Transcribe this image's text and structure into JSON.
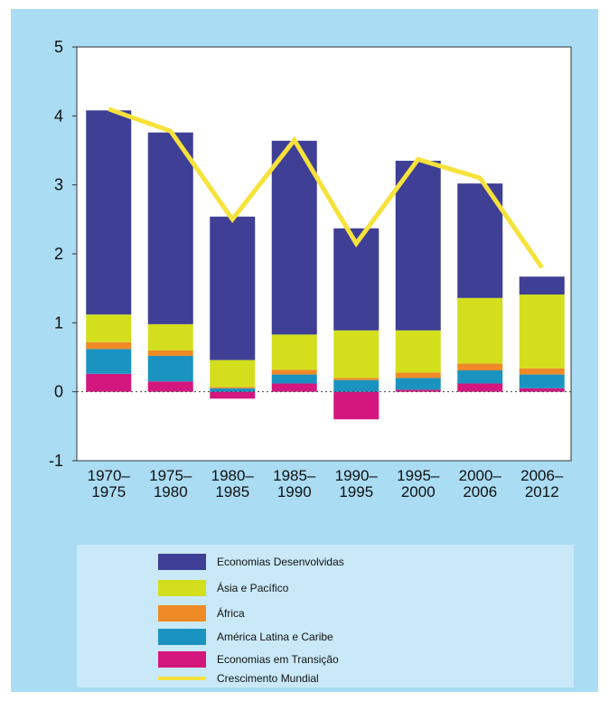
{
  "chart_data": {
    "type": "bar",
    "stacked": true,
    "categories": [
      "1970–1975",
      "1975–1980",
      "1980–1985",
      "1985–1990",
      "1990–1995",
      "1995–2000",
      "2000–2006",
      "2006–2012"
    ],
    "series": [
      {
        "name": "Economias Desenvolvidas",
        "type": "bar",
        "color": "#3e3f95",
        "values": [
          2.96,
          2.78,
          2.08,
          2.81,
          1.48,
          2.46,
          1.66,
          0.26
        ]
      },
      {
        "name": "Ásia e Pacífico",
        "type": "bar",
        "color": "#d3df1d",
        "values": [
          0.4,
          0.38,
          0.39,
          0.51,
          0.69,
          0.61,
          0.95,
          1.07
        ]
      },
      {
        "name": "África",
        "type": "bar",
        "color": "#ef8a26",
        "values": [
          0.1,
          0.08,
          0.02,
          0.07,
          0.03,
          0.08,
          0.1,
          0.09
        ]
      },
      {
        "name": "América Latina e Caribe",
        "type": "bar",
        "color": "#1b93c1",
        "values": [
          0.36,
          0.37,
          0.05,
          0.13,
          0.17,
          0.17,
          0.19,
          0.2
        ]
      },
      {
        "name": "Economias em Transição",
        "type": "bar",
        "color": "#d4177f",
        "values": [
          0.26,
          0.15,
          -0.1,
          0.12,
          -0.4,
          0.03,
          0.12,
          0.05
        ]
      },
      {
        "name": "Crescimento Mundial",
        "type": "line",
        "color": "#f6e23a",
        "values": [
          4.1,
          3.78,
          2.5,
          3.65,
          2.15,
          3.37,
          3.1,
          1.8
        ]
      }
    ],
    "ylim": [
      -1,
      5
    ],
    "yticks": [
      -1,
      0,
      1,
      2,
      3,
      4,
      5
    ]
  }
}
